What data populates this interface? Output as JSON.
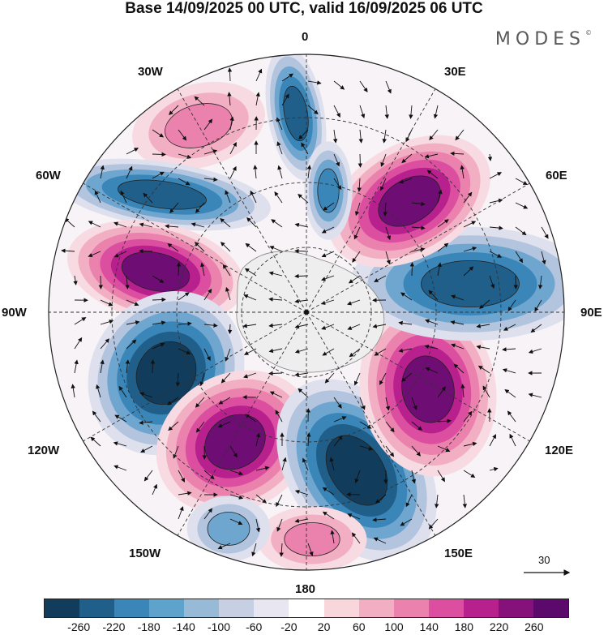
{
  "title": "Base 14/09/2025 00 UTC, valid 16/09/2025 06 UTC",
  "brand": {
    "name": "MODES",
    "mark": "©"
  },
  "longitude_labels": {
    "top": "0",
    "e30": "30E",
    "e60": "60E",
    "e90": "90E",
    "e120": "120E",
    "e150": "150E",
    "bottom": "180",
    "w150": "150W",
    "w120": "120W",
    "w90": "90W",
    "w60": "60W",
    "w30": "30W"
  },
  "vector_reference": {
    "label": "30"
  },
  "colorbar": {
    "colors": [
      "#123c5c",
      "#1f5f8a",
      "#3a86b8",
      "#5ea3cc",
      "#97bad6",
      "#c7cfe3",
      "#e7e6f1",
      "#ffffff",
      "#f8d6dc",
      "#f2aec2",
      "#ea82ad",
      "#dc4fa0",
      "#b8208d",
      "#86117a",
      "#5b0a6b"
    ],
    "ticks": [
      "-260",
      "-220",
      "-180",
      "-140",
      "-100",
      "-60",
      "-20",
      "20",
      "60",
      "100",
      "140",
      "180",
      "220",
      "260"
    ]
  },
  "map_features": [
    {
      "name": "anomaly-negative-north",
      "sign": "negative",
      "intensity": 0.8
    },
    {
      "name": "anomaly-positive-northwest",
      "sign": "positive",
      "intensity": 0.4
    },
    {
      "name": "anomaly-negative-west60",
      "sign": "negative",
      "intensity": 0.85
    },
    {
      "name": "anomaly-positive-west80",
      "sign": "positive",
      "intensity": 1.0
    },
    {
      "name": "anomaly-negative-west110",
      "sign": "negative",
      "intensity": 0.95
    },
    {
      "name": "anomaly-positive-south130w",
      "sign": "positive",
      "intensity": 1.0
    },
    {
      "name": "anomaly-negative-south160e",
      "sign": "negative",
      "intensity": 1.0
    },
    {
      "name": "anomaly-positive-east110",
      "sign": "positive",
      "intensity": 1.0
    },
    {
      "name": "anomaly-negative-east85",
      "sign": "negative",
      "intensity": 0.85
    },
    {
      "name": "anomaly-positive-east55",
      "sign": "positive",
      "intensity": 1.0
    },
    {
      "name": "anomaly-negative-center-north",
      "sign": "negative",
      "intensity": 0.6
    },
    {
      "name": "anomaly-positive-south180",
      "sign": "positive",
      "intensity": 0.5
    },
    {
      "name": "anomaly-negative-south150w",
      "sign": "negative",
      "intensity": 0.5
    }
  ]
}
